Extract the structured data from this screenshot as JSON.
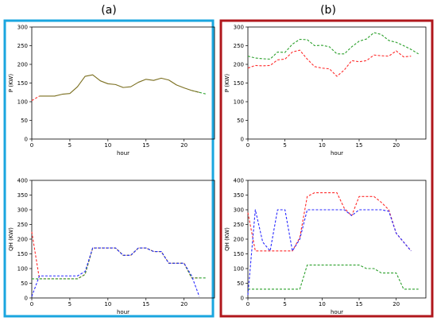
{
  "panel_labels": [
    "(a)",
    "(b)"
  ],
  "colors": {
    "frame_a": "#1aa6df",
    "frame_b": "#b0171c",
    "red": "#ff2a2a",
    "green": "#2ca02c",
    "blue": "#2a2aff",
    "olive": "#7a6e1e"
  },
  "chart_data": [
    {
      "id": "a-top",
      "type": "line",
      "xlabel": "hour",
      "ylabel": "P (KW)",
      "xlim": [
        0,
        24
      ],
      "ylim": [
        0,
        300
      ],
      "xticks": [
        0,
        5,
        10,
        15,
        20
      ],
      "yticks": [
        0,
        50,
        100,
        150,
        200,
        250,
        300
      ],
      "grid": false,
      "series": [
        {
          "color": "red",
          "dashed": true,
          "x": [
            0,
            1
          ],
          "y": [
            103,
            115
          ]
        },
        {
          "color": "green",
          "dashed": true,
          "x": [
            21,
            22,
            23
          ],
          "y": [
            130,
            125,
            120
          ]
        },
        {
          "color": "olive",
          "dashed": false,
          "x": [
            1,
            2,
            3,
            4,
            5,
            6,
            7,
            8,
            9,
            10,
            11,
            12,
            13,
            14,
            15,
            16,
            17,
            18,
            19,
            20,
            21,
            22
          ],
          "y": [
            115,
            115,
            115,
            120,
            122,
            140,
            168,
            172,
            156,
            148,
            146,
            138,
            140,
            152,
            160,
            157,
            163,
            158,
            145,
            137,
            130,
            125
          ]
        }
      ]
    },
    {
      "id": "a-bottom",
      "type": "line",
      "xlabel": "hour",
      "ylabel": "QH (KW)",
      "xlim": [
        0,
        24
      ],
      "ylim": [
        0,
        400
      ],
      "xticks": [
        0,
        5,
        10,
        15,
        20
      ],
      "yticks": [
        0,
        50,
        100,
        150,
        200,
        250,
        300,
        350,
        400
      ],
      "grid": false,
      "series": [
        {
          "color": "red",
          "dashed": true,
          "x": [
            0,
            1,
            2,
            3,
            4,
            5,
            6,
            7,
            8,
            9,
            10,
            11,
            12,
            13,
            14,
            15,
            16,
            17,
            18,
            19,
            20,
            21,
            22
          ],
          "y": [
            225,
            65,
            65,
            65,
            65,
            65,
            65,
            80,
            170,
            170,
            170,
            170,
            145,
            145,
            170,
            170,
            158,
            158,
            118,
            118,
            118,
            68,
            68
          ]
        },
        {
          "color": "green",
          "dashed": true,
          "x": [
            0,
            1,
            2,
            3,
            4,
            5,
            6,
            7,
            8,
            9,
            10,
            11,
            12,
            13,
            14,
            15,
            16,
            17,
            18,
            19,
            20,
            21,
            22,
            23
          ],
          "y": [
            65,
            65,
            65,
            65,
            65,
            65,
            65,
            80,
            170,
            170,
            170,
            170,
            145,
            145,
            170,
            170,
            158,
            158,
            118,
            118,
            118,
            68,
            68,
            68
          ]
        },
        {
          "color": "blue",
          "dashed": true,
          "x": [
            0,
            1,
            2,
            3,
            4,
            5,
            6,
            7,
            8,
            9,
            10,
            11,
            12,
            13,
            14,
            15,
            16,
            17,
            18,
            19,
            20,
            21,
            22
          ],
          "y": [
            5,
            75,
            75,
            75,
            75,
            75,
            75,
            90,
            170,
            170,
            170,
            170,
            145,
            145,
            170,
            170,
            158,
            158,
            118,
            118,
            118,
            75,
            5
          ]
        }
      ]
    },
    {
      "id": "b-top",
      "type": "line",
      "xlabel": "hour",
      "ylabel": "P (KW)",
      "xlim": [
        0,
        24
      ],
      "ylim": [
        0,
        300
      ],
      "xticks": [
        0,
        5,
        10,
        15,
        20
      ],
      "yticks": [
        0,
        50,
        100,
        150,
        200,
        250,
        300
      ],
      "grid": false,
      "series": [
        {
          "color": "red",
          "dashed": true,
          "x": [
            0,
            1,
            2,
            3,
            4,
            5,
            6,
            7,
            8,
            9,
            10,
            11,
            12,
            13,
            14,
            15,
            16,
            17,
            18,
            19,
            20,
            21,
            22
          ],
          "y": [
            190,
            197,
            196,
            197,
            212,
            214,
            233,
            238,
            214,
            194,
            190,
            188,
            168,
            185,
            210,
            207,
            210,
            225,
            223,
            222,
            236,
            220,
            222
          ]
        },
        {
          "color": "green",
          "dashed": true,
          "x": [
            0,
            1,
            2,
            3,
            4,
            5,
            6,
            7,
            8,
            9,
            10,
            11,
            12,
            13,
            14,
            15,
            16,
            17,
            18,
            19,
            20,
            21,
            22,
            23
          ],
          "y": [
            222,
            217,
            215,
            214,
            233,
            232,
            254,
            267,
            266,
            250,
            251,
            247,
            228,
            228,
            247,
            262,
            268,
            285,
            280,
            264,
            259,
            250,
            240,
            228
          ]
        }
      ]
    },
    {
      "id": "b-bottom",
      "type": "line",
      "xlabel": "hour",
      "ylabel": "QH (KW)",
      "xlim": [
        0,
        24
      ],
      "ylim": [
        0,
        400
      ],
      "xticks": [
        0,
        5,
        10,
        15,
        20
      ],
      "yticks": [
        0,
        50,
        100,
        150,
        200,
        250,
        300,
        350,
        400
      ],
      "grid": false,
      "series": [
        {
          "color": "red",
          "dashed": true,
          "x": [
            0,
            1,
            2,
            3,
            4,
            5,
            6,
            7,
            8,
            9,
            10,
            11,
            12,
            13,
            14,
            15,
            16,
            17,
            18,
            19,
            20,
            21,
            22
          ],
          "y": [
            290,
            160,
            160,
            160,
            160,
            160,
            160,
            205,
            345,
            358,
            358,
            358,
            358,
            305,
            280,
            345,
            345,
            345,
            325,
            300,
            220,
            190,
            160
          ]
        },
        {
          "color": "green",
          "dashed": true,
          "x": [
            0,
            1,
            2,
            3,
            4,
            5,
            6,
            7,
            8,
            9,
            10,
            11,
            12,
            13,
            14,
            15,
            16,
            17,
            18,
            19,
            20,
            21,
            22,
            23
          ],
          "y": [
            30,
            30,
            30,
            30,
            30,
            30,
            30,
            30,
            112,
            112,
            112,
            112,
            112,
            112,
            112,
            112,
            100,
            100,
            85,
            85,
            85,
            30,
            30,
            30
          ]
        },
        {
          "color": "blue",
          "dashed": true,
          "x": [
            0,
            1,
            2,
            3,
            4,
            5,
            6,
            7,
            8,
            9,
            10,
            11,
            12,
            13,
            14,
            15,
            16,
            17,
            18,
            19,
            20,
            21,
            22
          ],
          "y": [
            10,
            300,
            190,
            160,
            300,
            300,
            160,
            200,
            300,
            300,
            300,
            300,
            300,
            300,
            280,
            300,
            300,
            300,
            300,
            295,
            220,
            190,
            160
          ]
        }
      ]
    }
  ]
}
